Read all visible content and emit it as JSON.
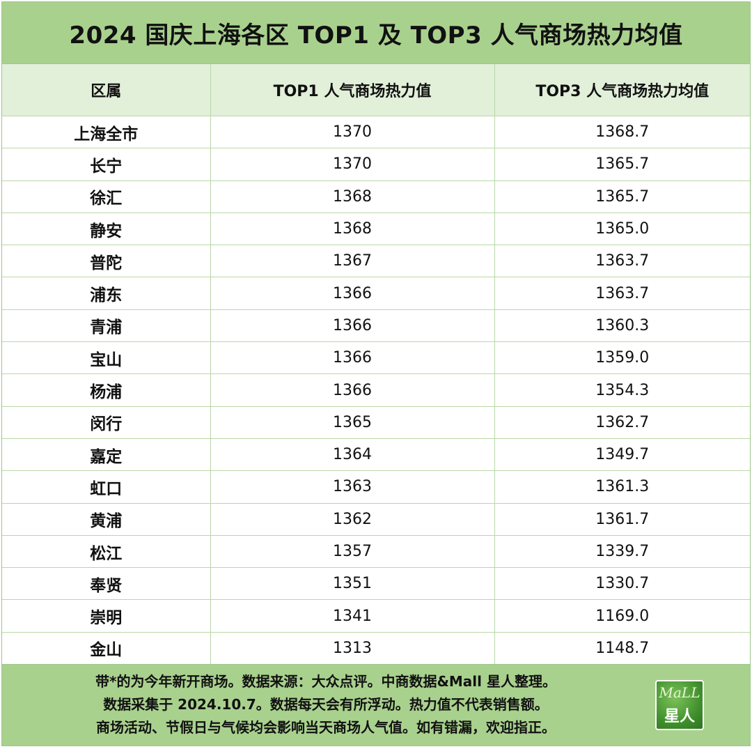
{
  "title": "2024 国庆上海各区 TOP1 及 TOP3 人气商场热力均值",
  "table": {
    "headers": [
      "区属",
      "TOP1 人气商场热力值",
      "TOP3 人气商场热力均值"
    ],
    "rows": [
      {
        "district": "上海全市",
        "top1": "1370",
        "top3": "1368.7"
      },
      {
        "district": "长宁",
        "top1": "1370",
        "top3": "1365.7"
      },
      {
        "district": "徐汇",
        "top1": "1368",
        "top3": "1365.7"
      },
      {
        "district": "静安",
        "top1": "1368",
        "top3": "1365.0"
      },
      {
        "district": "普陀",
        "top1": "1367",
        "top3": "1363.7"
      },
      {
        "district": "浦东",
        "top1": "1366",
        "top3": "1363.7"
      },
      {
        "district": "青浦",
        "top1": "1366",
        "top3": "1360.3"
      },
      {
        "district": "宝山",
        "top1": "1366",
        "top3": "1359.0"
      },
      {
        "district": "杨浦",
        "top1": "1366",
        "top3": "1354.3"
      },
      {
        "district": "闵行",
        "top1": "1365",
        "top3": "1362.7"
      },
      {
        "district": "嘉定",
        "top1": "1364",
        "top3": "1349.7"
      },
      {
        "district": "虹口",
        "top1": "1363",
        "top3": "1361.3"
      },
      {
        "district": "黄浦",
        "top1": "1362",
        "top3": "1361.7"
      },
      {
        "district": "松江",
        "top1": "1357",
        "top3": "1339.7"
      },
      {
        "district": "奉贤",
        "top1": "1351",
        "top3": "1330.7"
      },
      {
        "district": "崇明",
        "top1": "1341",
        "top3": "1169.0"
      },
      {
        "district": "金山",
        "top1": "1313",
        "top3": "1148.7"
      }
    ]
  },
  "footer": {
    "lines": [
      "带*的为今年新开商场。数据来源：大众点评。中商数据&Mall 星人整理。",
      "数据采集于 2024.10.7。数据每天会有所浮动。热力值不代表销售额。",
      "商场活动、节假日与气候均会影响当天商场人气值。如有错漏，欢迎指正。"
    ],
    "logo": {
      "top_text": "MaLL",
      "bottom_text": "星人"
    }
  },
  "colors": {
    "title_bg": "#a9d18e",
    "header_bg": "#e2efd9",
    "grid": "#b9d7a8"
  }
}
